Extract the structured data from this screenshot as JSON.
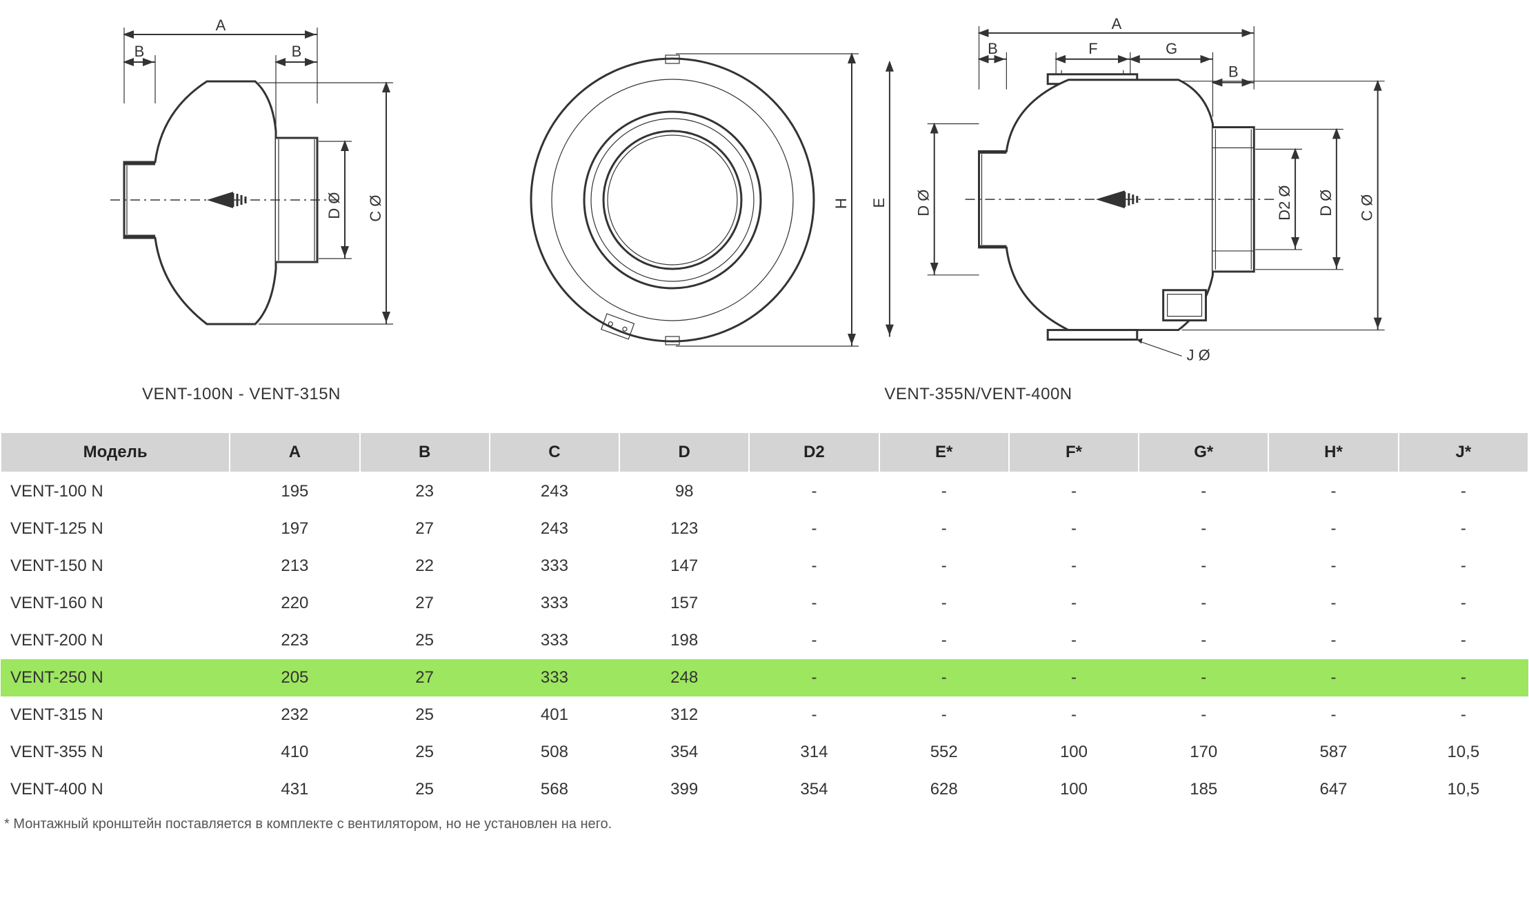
{
  "colors": {
    "header_bg": "#d4d4d4",
    "highlight_bg": "#9de660",
    "stroke": "#333333",
    "background": "#ffffff",
    "text": "#333333",
    "footnote_text": "#555555"
  },
  "diagram_left": {
    "caption": "VENT-100N - VENT-315N",
    "dims": {
      "A": "A",
      "B": "B",
      "C": "C Ø",
      "D": "D Ø"
    }
  },
  "diagram_right": {
    "caption": "VENT-355N/VENT-400N",
    "dims": {
      "A": "A",
      "B": "B",
      "F": "F",
      "G": "G",
      "C": "C Ø",
      "D": "D Ø",
      "D2": "D2 Ø",
      "E": "E",
      "H": "H",
      "J": "J Ø"
    }
  },
  "table": {
    "columns": [
      "Модель",
      "A",
      "B",
      "C",
      "D",
      "D2",
      "E*",
      "F*",
      "G*",
      "H*",
      "J*"
    ],
    "col_widths_pct": [
      15,
      8.5,
      8.5,
      8.5,
      8.5,
      8.5,
      8.5,
      8.5,
      8.5,
      8.5,
      8.5
    ],
    "highlight_row_index": 5,
    "rows": [
      [
        "VENT-100 N",
        "195",
        "23",
        "243",
        "98",
        "-",
        "-",
        "-",
        "-",
        "-",
        "-"
      ],
      [
        "VENT-125 N",
        "197",
        "27",
        "243",
        "123",
        "-",
        "-",
        "-",
        "-",
        "-",
        "-"
      ],
      [
        "VENT-150 N",
        "213",
        "22",
        "333",
        "147",
        "-",
        "-",
        "-",
        "-",
        "-",
        "-"
      ],
      [
        "VENT-160 N",
        "220",
        "27",
        "333",
        "157",
        "-",
        "-",
        "-",
        "-",
        "-",
        "-"
      ],
      [
        "VENT-200 N",
        "223",
        "25",
        "333",
        "198",
        "-",
        "-",
        "-",
        "-",
        "-",
        "-"
      ],
      [
        "VENT-250 N",
        "205",
        "27",
        "333",
        "248",
        "-",
        "-",
        "-",
        "-",
        "-",
        "-"
      ],
      [
        "VENT-315 N",
        "232",
        "25",
        "401",
        "312",
        "-",
        "-",
        "-",
        "-",
        "-",
        "-"
      ],
      [
        "VENT-355 N",
        "410",
        "25",
        "508",
        "354",
        "314",
        "552",
        "100",
        "170",
        "587",
        "10,5"
      ],
      [
        "VENT-400 N",
        "431",
        "25",
        "568",
        "399",
        "354",
        "628",
        "100",
        "185",
        "647",
        "10,5"
      ]
    ]
  },
  "footnote": "* Монтажный кронштейн поставляется в комплекте с вентилятором, но не установлен на него."
}
